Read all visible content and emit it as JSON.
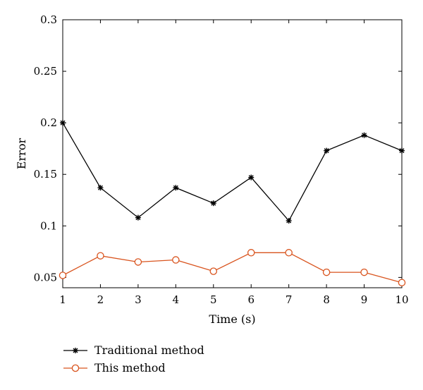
{
  "chart_data": {
    "type": "line",
    "xlabel": "Time (s)",
    "ylabel": "Error",
    "xlim": [
      1,
      10
    ],
    "ylim": [
      0.04,
      0.3
    ],
    "x": [
      1,
      2,
      3,
      4,
      5,
      6,
      7,
      8,
      9,
      10
    ],
    "xticks": [
      "1",
      "2",
      "3",
      "4",
      "5",
      "6",
      "7",
      "8",
      "9",
      "10"
    ],
    "yticks": [
      {
        "value": 0.05,
        "label": "0.05"
      },
      {
        "value": 0.1,
        "label": "0.1"
      },
      {
        "value": 0.15,
        "label": "0.15"
      },
      {
        "value": 0.2,
        "label": "0.2"
      },
      {
        "value": 0.25,
        "label": "0.25"
      },
      {
        "value": 0.3,
        "label": "0.3"
      }
    ],
    "grid": false,
    "legend_position": "bottom-left, outside plot",
    "series": [
      {
        "name": "Traditional method",
        "values": [
          0.2,
          0.137,
          0.108,
          0.137,
          0.122,
          0.147,
          0.105,
          0.173,
          0.188,
          0.173
        ],
        "color": "#000000",
        "marker": "star"
      },
      {
        "name": "This method",
        "values": [
          0.052,
          0.071,
          0.065,
          0.067,
          0.056,
          0.074,
          0.074,
          0.055,
          0.055,
          0.045
        ],
        "color": "#d9541e",
        "marker": "circle"
      }
    ]
  }
}
